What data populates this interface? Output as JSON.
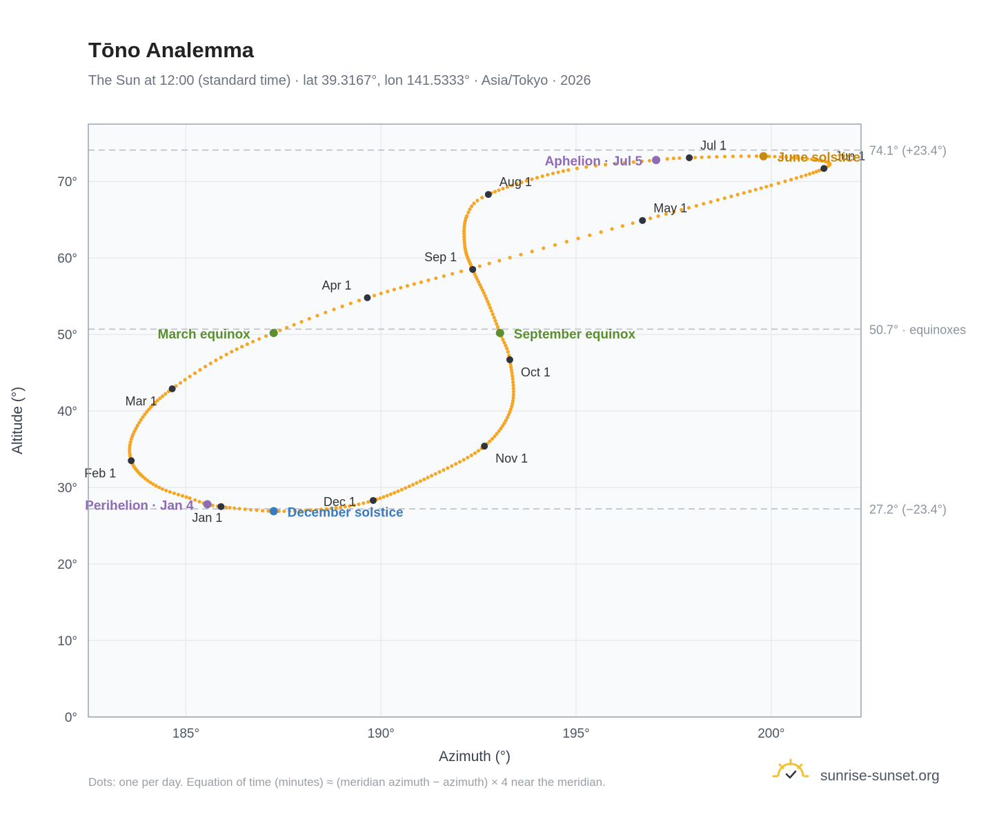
{
  "header": {
    "title": "Tōno Analemma",
    "subtitle": "The Sun at 12:00 (standard time) · lat 39.3167°, lon 141.5333° · Asia/Tokyo · 2026"
  },
  "footer": {
    "note": "Dots: one per day. Equation of time (minutes) ≈ (meridian azimuth − azimuth) × 4 near the meridian.",
    "brand": "sunrise-sunset.org"
  },
  "colors": {
    "path": "#f5a623",
    "marker": "#2f343d",
    "equinox": "#5b8f2e",
    "june": "#c98a0a",
    "december": "#3b7bbf",
    "apsis": "#8e6bb5",
    "grid": "#e5e8ec",
    "reference": "#b8c0c8",
    "frame": "#9aa3ae",
    "plot_bg": "#f8fafc"
  },
  "chart_data": {
    "type": "scatter",
    "title": "Tōno Analemma",
    "xlabel": "Azimuth (°)",
    "ylabel": "Altitude (°)",
    "xlim": [
      182.5,
      202.3
    ],
    "ylim": [
      0,
      77.5
    ],
    "x_ticks": [
      185,
      190,
      195,
      200
    ],
    "y_ticks": [
      0,
      10,
      20,
      30,
      40,
      50,
      60,
      70
    ],
    "x_tick_labels": [
      "185°",
      "190°",
      "195°",
      "200°"
    ],
    "y_tick_labels": [
      "0°",
      "10°",
      "20°",
      "30°",
      "40°",
      "50°",
      "60°",
      "70°"
    ],
    "grid": true,
    "reference_lines": [
      {
        "y": 74.1,
        "label": "74.1° (+23.4°)"
      },
      {
        "y": 50.7,
        "label": "50.7° · equinoxes"
      },
      {
        "y": 27.2,
        "label": "27.2° (−23.4°)"
      }
    ],
    "series_daily_path": {
      "anchors_doy_az_alt": [
        [
          1,
          185.9,
          27.5
        ],
        [
          4,
          185.55,
          27.8
        ],
        [
          8,
          185.1,
          28.6
        ],
        [
          15,
          184.4,
          29.8
        ],
        [
          22,
          183.9,
          31.4
        ],
        [
          32,
          183.6,
          33.5
        ],
        [
          40,
          183.6,
          36.3
        ],
        [
          50,
          184.0,
          39.9
        ],
        [
          60,
          184.65,
          42.9
        ],
        [
          70,
          185.9,
          47.0
        ],
        [
          79,
          187.25,
          50.2
        ],
        [
          91,
          189.65,
          54.8
        ],
        [
          105,
          192.3,
          58.6
        ],
        [
          121,
          196.7,
          64.9
        ],
        [
          140,
          200.0,
          69.5
        ],
        [
          152,
          201.35,
          71.7
        ],
        [
          160,
          201.3,
          72.7
        ],
        [
          172,
          199.8,
          73.3
        ],
        [
          182,
          197.9,
          73.1
        ],
        [
          186,
          197.05,
          72.8
        ],
        [
          196,
          194.8,
          71.5
        ],
        [
          213,
          192.75,
          68.3
        ],
        [
          220,
          192.2,
          65.5
        ],
        [
          232,
          192.15,
          61.5
        ],
        [
          244,
          192.35,
          58.5
        ],
        [
          255,
          192.7,
          54.7
        ],
        [
          266,
          193.05,
          50.2
        ],
        [
          274,
          193.3,
          46.7
        ],
        [
          290,
          193.35,
          40.6
        ],
        [
          305,
          192.65,
          35.4
        ],
        [
          320,
          191.2,
          31.3
        ],
        [
          335,
          189.8,
          28.3
        ],
        [
          345,
          188.6,
          27.2
        ],
        [
          355,
          187.25,
          26.9
        ],
        [
          365,
          185.95,
          27.45
        ]
      ]
    },
    "month_markers": [
      {
        "label": "Jan 1",
        "x": 185.9,
        "y": 27.5
      },
      {
        "label": "Feb 1",
        "x": 183.6,
        "y": 33.5
      },
      {
        "label": "Mar 1",
        "x": 184.65,
        "y": 42.9
      },
      {
        "label": "Apr 1",
        "x": 189.65,
        "y": 54.8
      },
      {
        "label": "May 1",
        "x": 196.7,
        "y": 64.9
      },
      {
        "label": "Jun 1",
        "x": 201.35,
        "y": 71.7
      },
      {
        "label": "Jul 1",
        "x": 197.9,
        "y": 73.1
      },
      {
        "label": "Aug 1",
        "x": 192.75,
        "y": 68.3
      },
      {
        "label": "Sep 1",
        "x": 192.35,
        "y": 58.5
      },
      {
        "label": "Oct 1",
        "x": 193.3,
        "y": 46.7
      },
      {
        "label": "Nov 1",
        "x": 192.65,
        "y": 35.4
      },
      {
        "label": "Dec 1",
        "x": 189.8,
        "y": 28.3
      }
    ],
    "events": [
      {
        "label": "March equinox",
        "x": 187.25,
        "y": 50.2,
        "color": "#5b8f2e"
      },
      {
        "label": "September equinox",
        "x": 193.05,
        "y": 50.2,
        "color": "#5b8f2e"
      },
      {
        "label": "June solstice",
        "x": 199.8,
        "y": 73.3,
        "color": "#c98a0a"
      },
      {
        "label": "December solstice",
        "x": 187.25,
        "y": 26.9,
        "color": "#3b7bbf"
      },
      {
        "label": "Aphelion · Jul 5",
        "x": 197.05,
        "y": 72.8,
        "color": "#8e6bb5"
      },
      {
        "label": "Perihelion · Jan 4",
        "x": 185.55,
        "y": 27.8,
        "color": "#8e6bb5"
      }
    ]
  }
}
